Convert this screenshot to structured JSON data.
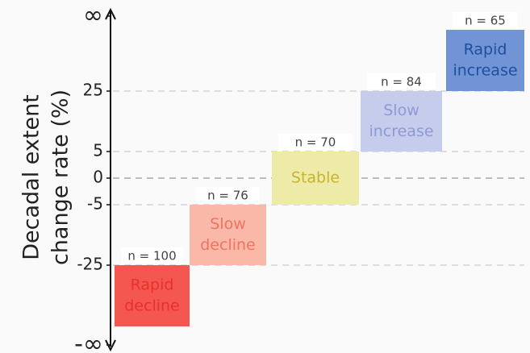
{
  "chart_data": {
    "type": "range-blocks",
    "y_label": [
      "Decadal extent",
      "change rate (%)"
    ],
    "yticks": [
      "-∞",
      "-25",
      "-5",
      "0",
      "5",
      "25",
      "∞"
    ],
    "blocks": [
      {
        "label": [
          "Rapid",
          "decline"
        ],
        "n": "n = 100",
        "color": "#f4574f",
        "text_color": "#e8302c"
      },
      {
        "label": [
          "Slow",
          "decline"
        ],
        "n": "n = 76",
        "color": "#f9b8a8",
        "text_color": "#ef7461"
      },
      {
        "label": [
          "Stable"
        ],
        "n": "n = 70",
        "color": "#eeeba8",
        "text_color": "#c4b432"
      },
      {
        "label": [
          "Slow",
          "increase"
        ],
        "n": "n = 84",
        "color": "#c6cceb",
        "text_color": "#8e9ad6"
      },
      {
        "label": [
          "Rapid",
          "increase"
        ],
        "n": "n = 65",
        "color": "#7194d6",
        "text_color": "#1f4f9c"
      }
    ]
  }
}
